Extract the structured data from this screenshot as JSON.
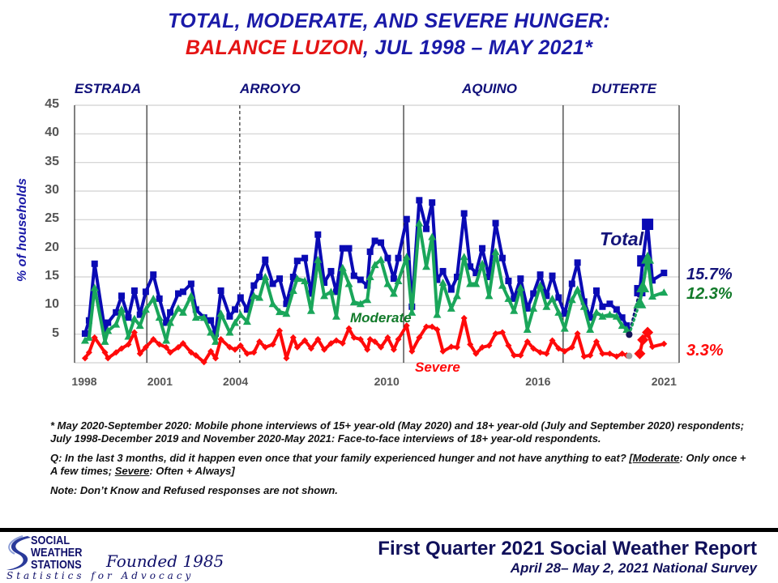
{
  "title": {
    "line1": "TOTAL, MODERATE, AND SEVERE HUNGER:",
    "line2_region": "BALANCE LUZON",
    "line2_rest": ", JUL 1998 – MAY 2021*"
  },
  "administrations": [
    "ESTRADA",
    "ARROYO",
    "AQUINO",
    "DUTERTE"
  ],
  "colors": {
    "total": "#0a0ab4",
    "moderate": "#1aa65a",
    "severe": "#ff0a0a",
    "total_label": "#14147a",
    "moderate_label": "#127a2a"
  },
  "chart_data": {
    "type": "line",
    "ylabel": "% of households",
    "ylim": [
      0,
      45
    ],
    "yticks": [
      "5",
      "10",
      "15",
      "20",
      "25",
      "30",
      "35",
      "40",
      "45"
    ],
    "xticks": [
      {
        "label": "1998",
        "x": 1998
      },
      {
        "label": "2001",
        "x": 2001
      },
      {
        "label": "2004",
        "x": 2004
      },
      {
        "label": "2010",
        "x": 2010
      },
      {
        "label": "2016",
        "x": 2016
      },
      {
        "label": "2021",
        "x": 2021
      }
    ],
    "xlim": [
      1997.6,
      2023.4
    ],
    "grid": true,
    "dividers": [
      {
        "x": 2000.48,
        "style": "solid"
      },
      {
        "x": 2004.17,
        "style": "dashed"
      },
      {
        "x": 2010.67,
        "style": "solid"
      },
      {
        "x": 2017.0,
        "style": "solid"
      }
    ],
    "x": [
      1998.03,
      1998.19,
      1998.41,
      1998.82,
      1998.94,
      1999.26,
      1999.48,
      1999.75,
      1999.99,
      2000.21,
      2000.44,
      2000.74,
      2000.98,
      2001.25,
      2001.41,
      2001.73,
      2001.92,
      2002.24,
      2002.43,
      2002.75,
      2003.02,
      2003.21,
      2003.42,
      2003.77,
      2003.98,
      2004.2,
      2004.46,
      2004.73,
      2004.95,
      2005.18,
      2005.48,
      2005.75,
      2006.02,
      2006.29,
      2006.45,
      2006.75,
      2007.0,
      2007.27,
      2007.52,
      2007.79,
      2008.0,
      2008.25,
      2008.5,
      2008.7,
      2008.96,
      2009.23,
      2009.34,
      2009.53,
      2009.77,
      2010.04,
      2010.28,
      2010.46,
      2010.79,
      2011.0,
      2011.29,
      2011.57,
      2011.8,
      2012.0,
      2012.23,
      2012.56,
      2012.79,
      2013.07,
      2013.31,
      2013.54,
      2013.79,
      2014.06,
      2014.32,
      2014.59,
      2014.83,
      2015.05,
      2015.31,
      2015.58,
      2015.82,
      2016.09,
      2016.34,
      2016.57,
      2016.82,
      2017.06,
      2017.35,
      2017.57,
      2017.83,
      2018.07,
      2018.32,
      2018.56,
      2018.85,
      2019.12,
      2019.34,
      2019.52,
      2019.62,
      2020.04,
      2020.16,
      2020.35,
      2020.54,
      2021.0
    ],
    "series": [
      {
        "name": "Total",
        "values": [
          5.1,
          7.4,
          17.3,
          5.6,
          7.0,
          8.8,
          11.7,
          7.9,
          12.6,
          8.4,
          12.4,
          15.4,
          11.2,
          7.0,
          8.8,
          12.1,
          12.4,
          13.8,
          9.3,
          7.9,
          7.4,
          5.1,
          12.6,
          8.1,
          9.3,
          11.4,
          9.3,
          13.5,
          15.0,
          18.0,
          13.8,
          14.7,
          10.3,
          15.0,
          17.8,
          18.3,
          12.1,
          22.4,
          14.0,
          16.0,
          12.4,
          20.0,
          20.0,
          15.2,
          14.5,
          13.5,
          19.4,
          21.3,
          21.0,
          18.3,
          14.7,
          18.3,
          25.1,
          9.8,
          28.4,
          23.4,
          28.0,
          14.5,
          16.0,
          12.8,
          15.0,
          26.1,
          16.8,
          15.7,
          20.0,
          15.0,
          24.4,
          18.3,
          14.3,
          11.2,
          14.7,
          9.5,
          12.1,
          15.4,
          11.7,
          15.2,
          11.4,
          8.6,
          13.8,
          17.5,
          10.7,
          7.9,
          12.6,
          9.8,
          10.3,
          9.3,
          7.9,
          6.5,
          5.0,
          12.6,
          17.8,
          24.2,
          14.4,
          15.7
        ]
      },
      {
        "name": "Moderate",
        "values": [
          3.9,
          4.4,
          13.1,
          3.7,
          5.6,
          6.7,
          9.3,
          4.6,
          7.7,
          6.5,
          9.3,
          11.2,
          7.9,
          3.9,
          7.0,
          9.5,
          8.8,
          11.7,
          7.9,
          7.9,
          5.3,
          3.7,
          8.6,
          5.3,
          7.0,
          8.4,
          7.2,
          11.7,
          11.4,
          15.0,
          10.3,
          8.9,
          8.6,
          12.6,
          14.7,
          14.3,
          9.1,
          18.0,
          11.7,
          12.4,
          8.1,
          16.6,
          13.8,
          10.6,
          10.3,
          11.0,
          15.0,
          17.1,
          18.0,
          13.8,
          12.1,
          14.3,
          18.5,
          8.8,
          24.4,
          16.8,
          22.0,
          8.4,
          14.0,
          9.5,
          11.7,
          18.5,
          13.8,
          13.8,
          17.3,
          11.7,
          19.4,
          13.5,
          11.2,
          9.1,
          13.1,
          5.8,
          9.5,
          13.5,
          9.8,
          11.2,
          8.8,
          6.0,
          11.0,
          12.8,
          9.8,
          5.8,
          8.8,
          8.1,
          8.4,
          8.1,
          6.5,
          5.8,
          4.9,
          10.5,
          13.3,
          18.3,
          11.6,
          12.3
        ]
      },
      {
        "name": "Severe",
        "values": [
          0.8,
          1.8,
          4.4,
          1.8,
          0.8,
          1.8,
          2.5,
          3.2,
          5.3,
          1.6,
          2.7,
          4.1,
          3.2,
          2.7,
          1.8,
          2.7,
          3.4,
          1.8,
          1.3,
          0.1,
          2.0,
          0.8,
          4.1,
          2.7,
          2.3,
          3.0,
          1.6,
          1.8,
          3.7,
          2.7,
          3.2,
          5.6,
          0.8,
          4.4,
          2.7,
          3.9,
          2.5,
          4.1,
          2.3,
          3.4,
          3.9,
          3.4,
          6.0,
          4.4,
          4.1,
          2.3,
          4.1,
          3.7,
          2.7,
          4.4,
          2.3,
          4.1,
          6.5,
          2.0,
          4.4,
          6.3,
          6.3,
          5.8,
          2.0,
          2.8,
          2.7,
          7.8,
          3.2,
          1.6,
          2.7,
          3.0,
          5.1,
          5.3,
          3.0,
          1.3,
          1.3,
          3.7,
          2.5,
          1.8,
          1.6,
          3.9,
          2.5,
          2.0,
          2.7,
          5.1,
          1.1,
          1.3,
          3.7,
          1.6,
          1.6,
          1.1,
          1.6,
          1.3,
          1.2,
          1.6,
          4.0,
          5.3,
          2.8,
          3.3
        ]
      }
    ],
    "dec2019_point_x": 2019.62,
    "mobile_survey_x": [
      2020.04,
      2020.16,
      2020.35
    ],
    "series_labels": {
      "total": "Total",
      "moderate": "Moderate",
      "severe": "Severe"
    },
    "end_labels": {
      "total": "15.7%",
      "moderate": "12.3%",
      "severe": "3.3%"
    }
  },
  "notes": {
    "footnote": "* May 2020-September 2020: Mobile phone interviews of 15+ year-old (May 2020) and 18+ year-old (July and September 2020) respondents; July 1998-December 2019 and November 2020-May 2021: Face-to-face interviews of 18+ year-old respondents.",
    "q_prefix": "Q: In the last 3 months, did it happen even once that your family experienced hunger and not have anything to eat? [",
    "q_moderate": "Moderate",
    "q_mid": ": Only once + A few times; ",
    "q_severe": "Severe",
    "q_end": ": Often + Always]",
    "note": "Note: Don’t Know and Refused responses are not shown."
  },
  "footer": {
    "logo_lines": [
      "SOCIAL",
      "WEATHER",
      "STATIONS"
    ],
    "founded": "Founded 1985",
    "tagline": "Statistics for Advocacy",
    "report_title": "First Quarter 2021 Social Weather Report",
    "report_subtitle": "April 28– May 2, 2021 National Survey"
  }
}
